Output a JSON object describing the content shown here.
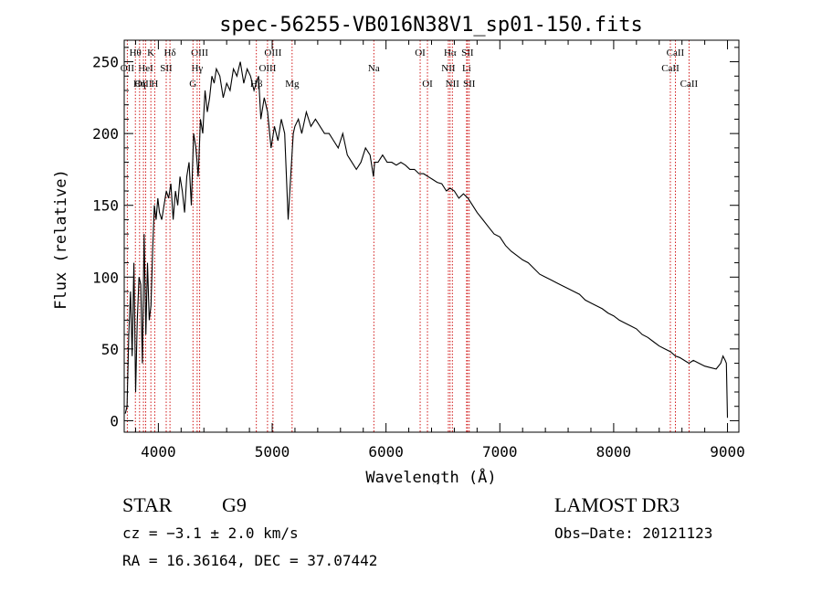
{
  "chart_data": {
    "type": "line",
    "title": "spec-56255-VB016N38V1_sp01-150.fits",
    "xlabel": "Wavelength (Å)",
    "ylabel": "Flux (relative)",
    "xlim": [
      3700,
      9100
    ],
    "ylim": [
      -8,
      265
    ],
    "xticks": [
      4000,
      5000,
      6000,
      7000,
      8000,
      9000
    ],
    "yticks": [
      0,
      50,
      100,
      150,
      200,
      250
    ],
    "series": [
      {
        "name": "flux",
        "x": [
          3710,
          3725,
          3740,
          3755,
          3770,
          3785,
          3800,
          3815,
          3830,
          3845,
          3860,
          3875,
          3890,
          3905,
          3920,
          3935,
          3950,
          3965,
          3980,
          3995,
          4010,
          4030,
          4050,
          4070,
          4090,
          4110,
          4130,
          4150,
          4170,
          4190,
          4210,
          4230,
          4250,
          4270,
          4290,
          4310,
          4330,
          4350,
          4370,
          4390,
          4410,
          4430,
          4450,
          4470,
          4490,
          4510,
          4540,
          4570,
          4600,
          4630,
          4660,
          4690,
          4720,
          4750,
          4780,
          4810,
          4840,
          4860,
          4880,
          4900,
          4930,
          4960,
          4990,
          5020,
          5050,
          5080,
          5110,
          5140,
          5170,
          5185,
          5200,
          5230,
          5260,
          5300,
          5340,
          5380,
          5420,
          5460,
          5500,
          5540,
          5580,
          5620,
          5660,
          5700,
          5740,
          5780,
          5820,
          5860,
          5890,
          5900,
          5930,
          5970,
          6010,
          6050,
          6090,
          6130,
          6170,
          6210,
          6250,
          6290,
          6330,
          6370,
          6410,
          6450,
          6490,
          6530,
          6563,
          6600,
          6640,
          6680,
          6720,
          6760,
          6800,
          6850,
          6900,
          6950,
          7000,
          7050,
          7100,
          7150,
          7200,
          7250,
          7300,
          7350,
          7400,
          7450,
          7500,
          7550,
          7600,
          7650,
          7700,
          7750,
          7800,
          7850,
          7900,
          7950,
          8000,
          8050,
          8100,
          8150,
          8200,
          8250,
          8300,
          8350,
          8400,
          8450,
          8500,
          8542,
          8580,
          8620,
          8662,
          8700,
          8750,
          8800,
          8850,
          8900,
          8940,
          8960,
          8980,
          8990,
          9000
        ],
        "values": [
          5,
          10,
          60,
          90,
          45,
          110,
          20,
          70,
          100,
          95,
          40,
          130,
          60,
          110,
          70,
          80,
          120,
          150,
          140,
          155,
          145,
          140,
          150,
          160,
          155,
          165,
          140,
          160,
          150,
          170,
          160,
          145,
          170,
          180,
          150,
          200,
          190,
          170,
          210,
          200,
          230,
          215,
          225,
          240,
          235,
          245,
          240,
          225,
          235,
          230,
          245,
          240,
          250,
          235,
          245,
          240,
          230,
          235,
          240,
          210,
          225,
          215,
          190,
          205,
          195,
          210,
          200,
          140,
          180,
          200,
          205,
          210,
          200,
          215,
          205,
          210,
          205,
          200,
          200,
          195,
          190,
          200,
          185,
          180,
          175,
          180,
          190,
          185,
          170,
          180,
          180,
          185,
          180,
          180,
          178,
          180,
          178,
          175,
          175,
          172,
          172,
          170,
          168,
          166,
          165,
          160,
          162,
          160,
          155,
          158,
          155,
          150,
          145,
          140,
          135,
          130,
          128,
          122,
          118,
          115,
          112,
          110,
          106,
          102,
          100,
          98,
          96,
          94,
          92,
          90,
          88,
          84,
          82,
          80,
          78,
          75,
          73,
          70,
          68,
          66,
          64,
          60,
          58,
          55,
          52,
          50,
          48,
          45,
          44,
          42,
          40,
          42,
          40,
          38,
          37,
          36,
          40,
          45,
          42,
          40,
          2
        ]
      }
    ],
    "lines": [
      {
        "label": "Hθ",
        "wavelength": 3798,
        "row": 1
      },
      {
        "label": "OII",
        "wavelength": 3727,
        "row": 2
      },
      {
        "label": "OIII",
        "wavelength": 3869,
        "row": 3
      },
      {
        "label": "HeI",
        "wavelength": 3889,
        "row": 2
      },
      {
        "label": "Hη",
        "wavelength": 3835,
        "row": 3
      },
      {
        "label": "K",
        "wavelength": 3934,
        "row": 1
      },
      {
        "label": "SII",
        "wavelength": 4069,
        "row": 2
      },
      {
        "label": "H",
        "wavelength": 3968,
        "row": 3
      },
      {
        "label": "Hδ",
        "wavelength": 4102,
        "row": 1
      },
      {
        "label": "OIII",
        "wavelength": 4363,
        "row": 1
      },
      {
        "label": "Hγ",
        "wavelength": 4341,
        "row": 2
      },
      {
        "label": "G",
        "wavelength": 4304,
        "row": 3
      },
      {
        "label": "OIII",
        "wavelength": 5007,
        "row": 1
      },
      {
        "label": "OIII",
        "wavelength": 4959,
        "row": 2
      },
      {
        "label": "Hβ",
        "wavelength": 4861,
        "row": 3
      },
      {
        "label": "Mg",
        "wavelength": 5175,
        "row": 3
      },
      {
        "label": "Na",
        "wavelength": 5893,
        "row": 2
      },
      {
        "label": "OI",
        "wavelength": 6300,
        "row": 1
      },
      {
        "label": "OI",
        "wavelength": 6364,
        "row": 3
      },
      {
        "label": "Hα",
        "wavelength": 6563,
        "row": 1
      },
      {
        "label": "SII",
        "wavelength": 6716,
        "row": 1
      },
      {
        "label": "NII",
        "wavelength": 6548,
        "row": 2
      },
      {
        "label": "Li",
        "wavelength": 6708,
        "row": 2
      },
      {
        "label": "NII",
        "wavelength": 6583,
        "row": 3
      },
      {
        "label": "SII",
        "wavelength": 6731,
        "row": 3
      },
      {
        "label": "CaII",
        "wavelength": 8498,
        "row": 2
      },
      {
        "label": "CaII",
        "wavelength": 8542,
        "row": 1
      },
      {
        "label": "CaII",
        "wavelength": 8662,
        "row": 3
      }
    ]
  },
  "info": {
    "class_label": "STAR",
    "subclass": "G9",
    "survey": "LAMOST DR3",
    "cz": "cz = −3.1 ± 2.0 km/s",
    "obs_date": "Obs−Date: 20121123",
    "radec": "RA =  16.36164, DEC =  37.07442"
  },
  "colors": {
    "line_marker": "#cc0000",
    "spectrum": "#000000"
  }
}
